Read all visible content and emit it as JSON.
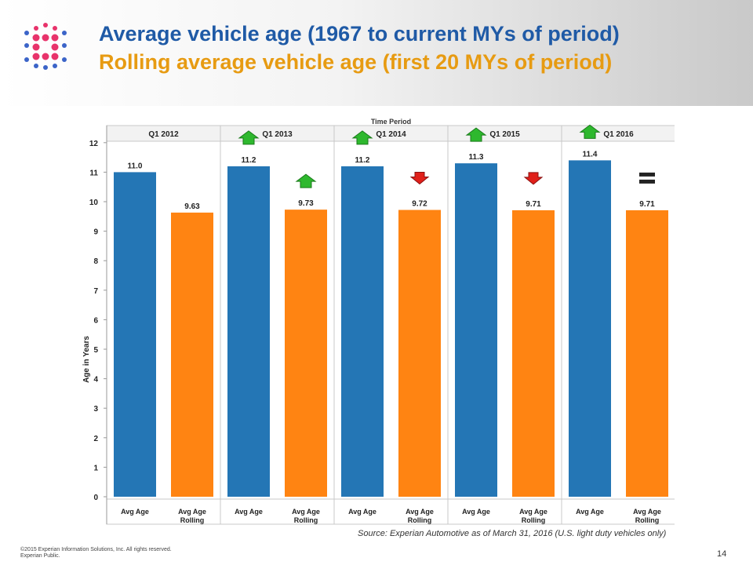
{
  "slide": {
    "title_line1": "Average vehicle age (1967 to current MYs of period)",
    "title_line2": "Rolling average vehicle age (first 20 MYs of period)",
    "source": "Source: Experian Automotive as of March 31, 2016  (U.S. light duty vehicles only)",
    "copyright_line1": "©2015  Experian Information Solutions, Inc. All rights reserved.",
    "copyright_line2": "Experian Public.",
    "page_number": "14",
    "colors": {
      "title1": "#1f5aa6",
      "title2": "#e79b12",
      "avg_age": "#2476b5",
      "avg_age_rolling": "#ff8412",
      "up_arrow": "#2eb82e",
      "down_arrow": "#e0201a",
      "logo_blue": "#3b64c8",
      "logo_pink": "#e8336b"
    }
  },
  "chart_data": {
    "type": "bar",
    "title": "Time Period",
    "xlabel": "",
    "ylabel": "Age in Years",
    "ylim": [
      0,
      12
    ],
    "yticks": [
      0,
      1,
      2,
      3,
      4,
      5,
      6,
      7,
      8,
      9,
      10,
      11,
      12
    ],
    "grid": false,
    "groups": [
      {
        "period": "Q1 2012",
        "values": [
          11.0,
          9.63
        ],
        "labels": [
          "11.0",
          "9.63"
        ],
        "indicators": [
          "none",
          "none"
        ]
      },
      {
        "period": "Q1 2013",
        "values": [
          11.2,
          9.73
        ],
        "labels": [
          "11.2",
          "9.73"
        ],
        "indicators": [
          "up",
          "up"
        ]
      },
      {
        "period": "Q1 2014",
        "values": [
          11.2,
          9.72
        ],
        "labels": [
          "11.2",
          "9.72"
        ],
        "indicators": [
          "up",
          "down"
        ]
      },
      {
        "period": "Q1 2015",
        "values": [
          11.3,
          9.71
        ],
        "labels": [
          "11.3",
          "9.71"
        ],
        "indicators": [
          "up",
          "down"
        ]
      },
      {
        "period": "Q1 2016",
        "values": [
          11.4,
          9.71
        ],
        "labels": [
          "11.4",
          "9.71"
        ],
        "indicators": [
          "up",
          "equal"
        ]
      }
    ],
    "bar_categories": [
      {
        "line1": "Avg Age",
        "line2": ""
      },
      {
        "line1": "Avg Age",
        "line2": "Rolling"
      }
    ]
  }
}
